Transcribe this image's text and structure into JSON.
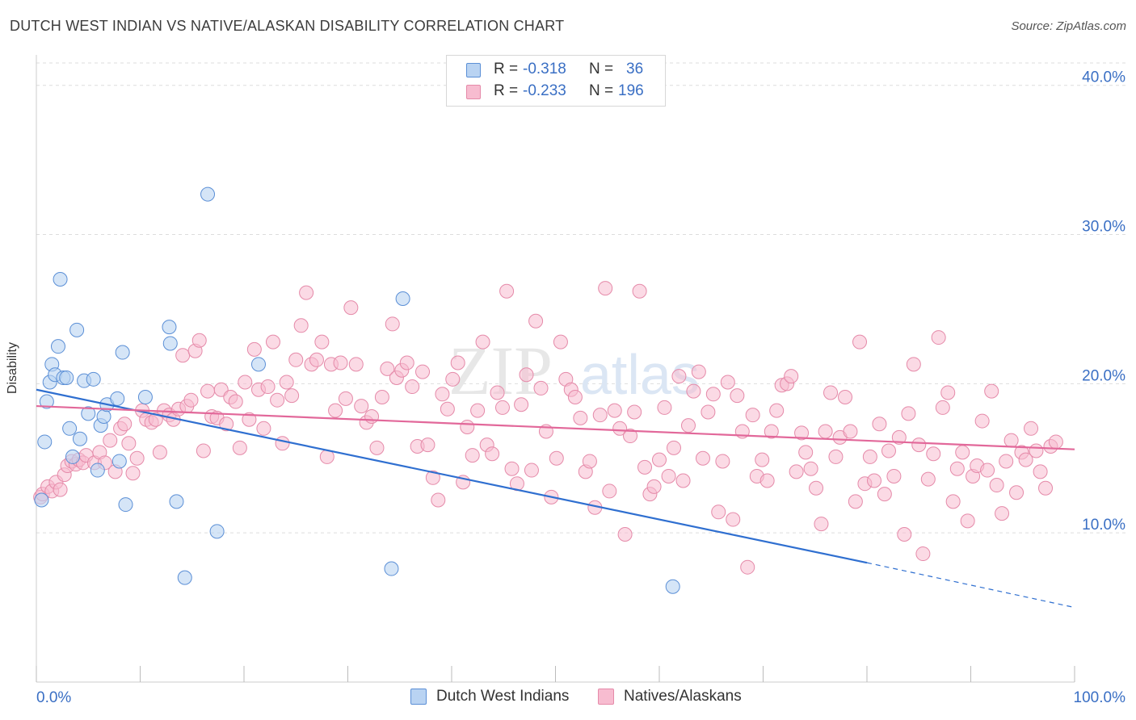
{
  "title": "DUTCH WEST INDIAN VS NATIVE/ALASKAN DISABILITY CORRELATION CHART",
  "source": "Source: ZipAtlas.com",
  "watermark": {
    "zip": "ZIP",
    "atlas": "atlas"
  },
  "stats": {
    "dutch": {
      "r_label": "R =",
      "r_value": "-0.318",
      "n_label": "N =",
      "n_value": "36"
    },
    "native": {
      "r_label": "R =",
      "r_value": "-0.233",
      "n_label": "N =",
      "n_value": "196"
    }
  },
  "legend": {
    "dutch": "Dutch West Indians",
    "native": "Natives/Alaskans"
  },
  "colors": {
    "dutch_fill": "#b9d3f2",
    "dutch_stroke": "#5b8fd6",
    "dutch_line": "#2f6fd0",
    "native_fill": "#f7bcd0",
    "native_stroke": "#e58aa9",
    "native_line": "#e2689a",
    "grid": "#dddddd",
    "axis_label": "#3a6fc4"
  },
  "chart_data": {
    "type": "scatter",
    "title": "DUTCH WEST INDIAN VS NATIVE/ALASKAN DISABILITY CORRELATION CHART",
    "xlabel": "",
    "ylabel": "Disability",
    "xlim": [
      0,
      100
    ],
    "ylim": [
      0,
      41.5
    ],
    "x_tick_labels": [
      "0.0%",
      "100.0%"
    ],
    "y_ticks": [
      10,
      20,
      30,
      40
    ],
    "y_tick_labels": [
      "10.0%",
      "20.0%",
      "30.0%",
      "40.0%"
    ],
    "grid": true,
    "legend_position": "bottom-center",
    "series": [
      {
        "name": "Dutch West Indians",
        "r": -0.318,
        "n": 36,
        "trend": {
          "x0": 0,
          "y0": 19.6,
          "x1": 80,
          "y1": 8.0,
          "dashed_to_x": 100,
          "dashed_to_y": 5.0
        },
        "points": [
          [
            0.5,
            12.2
          ],
          [
            0.8,
            16.1
          ],
          [
            1.0,
            18.8
          ],
          [
            1.3,
            20.1
          ],
          [
            1.5,
            21.3
          ],
          [
            1.8,
            20.6
          ],
          [
            2.1,
            22.5
          ],
          [
            2.3,
            27.0
          ],
          [
            2.6,
            20.4
          ],
          [
            2.9,
            20.4
          ],
          [
            3.2,
            17.0
          ],
          [
            3.5,
            15.1
          ],
          [
            3.9,
            23.6
          ],
          [
            4.2,
            16.3
          ],
          [
            4.6,
            20.2
          ],
          [
            5.0,
            18.0
          ],
          [
            5.5,
            20.3
          ],
          [
            5.9,
            14.2
          ],
          [
            6.2,
            17.2
          ],
          [
            6.5,
            17.8
          ],
          [
            6.8,
            18.6
          ],
          [
            7.8,
            19.0
          ],
          [
            8.0,
            14.8
          ],
          [
            8.3,
            22.1
          ],
          [
            8.6,
            11.9
          ],
          [
            10.5,
            19.1
          ],
          [
            12.8,
            23.8
          ],
          [
            12.9,
            22.7
          ],
          [
            13.5,
            12.1
          ],
          [
            14.3,
            7.0
          ],
          [
            16.5,
            32.7
          ],
          [
            17.4,
            10.1
          ],
          [
            21.4,
            21.3
          ],
          [
            34.2,
            7.6
          ],
          [
            35.3,
            25.7
          ],
          [
            61.3,
            6.4
          ]
        ]
      },
      {
        "name": "Natives/Alaskans",
        "r": -0.233,
        "n": 196,
        "trend": {
          "x0": 0,
          "y0": 18.5,
          "x1": 100,
          "y1": 15.6
        },
        "points": [
          [
            0.4,
            12.4
          ],
          [
            0.6,
            12.6
          ],
          [
            1.1,
            13.1
          ],
          [
            1.5,
            12.8
          ],
          [
            1.9,
            13.4
          ],
          [
            2.3,
            12.9
          ],
          [
            2.7,
            13.9
          ],
          [
            3.0,
            14.5
          ],
          [
            3.4,
            14.8
          ],
          [
            3.8,
            14.6
          ],
          [
            4.1,
            14.9
          ],
          [
            4.5,
            14.7
          ],
          [
            4.8,
            15.2
          ],
          [
            5.6,
            14.7
          ],
          [
            6.1,
            15.4
          ],
          [
            6.6,
            14.7
          ],
          [
            7.1,
            16.2
          ],
          [
            7.6,
            14.1
          ],
          [
            8.1,
            17.0
          ],
          [
            8.5,
            17.3
          ],
          [
            8.9,
            16.0
          ],
          [
            9.3,
            14.0
          ],
          [
            9.7,
            15.0
          ],
          [
            10.2,
            18.2
          ],
          [
            10.6,
            17.6
          ],
          [
            11.1,
            17.4
          ],
          [
            11.5,
            17.6
          ],
          [
            11.9,
            15.4
          ],
          [
            12.3,
            18.2
          ],
          [
            12.8,
            17.9
          ],
          [
            13.2,
            17.6
          ],
          [
            13.7,
            18.3
          ],
          [
            14.1,
            21.9
          ],
          [
            14.5,
            18.5
          ],
          [
            14.9,
            18.9
          ],
          [
            15.3,
            22.2
          ],
          [
            15.7,
            22.9
          ],
          [
            16.1,
            15.5
          ],
          [
            16.5,
            19.5
          ],
          [
            16.9,
            17.8
          ],
          [
            17.4,
            17.7
          ],
          [
            17.8,
            19.6
          ],
          [
            18.3,
            17.3
          ],
          [
            18.7,
            19.1
          ],
          [
            19.2,
            18.8
          ],
          [
            19.6,
            15.7
          ],
          [
            20.1,
            20.1
          ],
          [
            20.5,
            17.6
          ],
          [
            21.0,
            22.3
          ],
          [
            21.4,
            19.6
          ],
          [
            21.9,
            17.0
          ],
          [
            22.3,
            19.8
          ],
          [
            22.8,
            22.8
          ],
          [
            23.2,
            18.9
          ],
          [
            23.7,
            16.0
          ],
          [
            24.1,
            20.1
          ],
          [
            24.6,
            19.2
          ],
          [
            25.0,
            21.6
          ],
          [
            25.5,
            23.9
          ],
          [
            26.0,
            26.1
          ],
          [
            26.5,
            21.3
          ],
          [
            27.0,
            21.6
          ],
          [
            27.5,
            22.8
          ],
          [
            28.0,
            15.1
          ],
          [
            28.4,
            21.3
          ],
          [
            28.8,
            18.2
          ],
          [
            29.3,
            21.4
          ],
          [
            29.8,
            19.0
          ],
          [
            30.3,
            25.1
          ],
          [
            30.8,
            21.3
          ],
          [
            31.3,
            18.5
          ],
          [
            31.8,
            17.4
          ],
          [
            32.3,
            17.8
          ],
          [
            32.8,
            15.7
          ],
          [
            33.3,
            19.1
          ],
          [
            33.8,
            21.0
          ],
          [
            34.3,
            24.0
          ],
          [
            34.7,
            20.4
          ],
          [
            35.2,
            20.9
          ],
          [
            35.7,
            21.4
          ],
          [
            36.2,
            19.8
          ],
          [
            36.7,
            15.8
          ],
          [
            37.2,
            20.8
          ],
          [
            37.7,
            15.9
          ],
          [
            38.2,
            13.7
          ],
          [
            38.7,
            12.2
          ],
          [
            39.1,
            19.3
          ],
          [
            39.6,
            18.3
          ],
          [
            40.1,
            20.3
          ],
          [
            40.6,
            21.4
          ],
          [
            41.1,
            13.4
          ],
          [
            41.5,
            17.1
          ],
          [
            42.0,
            15.2
          ],
          [
            42.5,
            18.2
          ],
          [
            43.0,
            22.8
          ],
          [
            43.4,
            15.9
          ],
          [
            43.9,
            15.3
          ],
          [
            44.4,
            19.4
          ],
          [
            44.9,
            18.4
          ],
          [
            45.3,
            26.2
          ],
          [
            45.8,
            14.3
          ],
          [
            46.3,
            13.3
          ],
          [
            46.7,
            18.6
          ],
          [
            47.2,
            20.6
          ],
          [
            47.7,
            14.2
          ],
          [
            48.1,
            24.2
          ],
          [
            48.6,
            19.7
          ],
          [
            49.1,
            16.8
          ],
          [
            49.6,
            12.4
          ],
          [
            50.1,
            15.0
          ],
          [
            50.5,
            22.8
          ],
          [
            51.0,
            20.3
          ],
          [
            51.5,
            19.6
          ],
          [
            51.9,
            19.1
          ],
          [
            52.4,
            17.7
          ],
          [
            52.9,
            14.1
          ],
          [
            53.3,
            14.8
          ],
          [
            53.8,
            11.7
          ],
          [
            54.3,
            17.9
          ],
          [
            54.8,
            26.4
          ],
          [
            55.2,
            12.8
          ],
          [
            55.7,
            18.2
          ],
          [
            56.2,
            17.0
          ],
          [
            56.7,
            9.9
          ],
          [
            57.2,
            16.5
          ],
          [
            57.6,
            18.1
          ],
          [
            58.1,
            26.2
          ],
          [
            58.6,
            14.4
          ],
          [
            59.1,
            12.6
          ],
          [
            59.5,
            13.1
          ],
          [
            60.0,
            14.9
          ],
          [
            60.5,
            18.4
          ],
          [
            60.9,
            13.8
          ],
          [
            61.4,
            15.7
          ],
          [
            61.9,
            20.5
          ],
          [
            62.3,
            13.5
          ],
          [
            62.8,
            17.2
          ],
          [
            63.3,
            19.5
          ],
          [
            63.8,
            20.8
          ],
          [
            64.2,
            15.0
          ],
          [
            64.7,
            18.1
          ],
          [
            65.2,
            19.3
          ],
          [
            65.7,
            11.4
          ],
          [
            66.1,
            14.8
          ],
          [
            66.6,
            20.1
          ],
          [
            67.1,
            10.9
          ],
          [
            67.5,
            19.2
          ],
          [
            68.0,
            16.8
          ],
          [
            68.5,
            7.7
          ],
          [
            69.0,
            17.9
          ],
          [
            69.4,
            13.8
          ],
          [
            69.9,
            14.9
          ],
          [
            70.4,
            13.5
          ],
          [
            70.8,
            16.8
          ],
          [
            71.3,
            18.2
          ],
          [
            71.8,
            19.9
          ],
          [
            72.3,
            20.0
          ],
          [
            72.7,
            20.5
          ],
          [
            73.2,
            14.1
          ],
          [
            73.7,
            16.7
          ],
          [
            74.1,
            15.4
          ],
          [
            74.6,
            14.3
          ],
          [
            75.1,
            13.0
          ],
          [
            75.6,
            10.6
          ],
          [
            76.0,
            16.8
          ],
          [
            76.5,
            19.4
          ],
          [
            77.0,
            15.1
          ],
          [
            77.4,
            16.4
          ],
          [
            77.9,
            19.1
          ],
          [
            78.4,
            16.8
          ],
          [
            78.9,
            12.1
          ],
          [
            79.3,
            22.8
          ],
          [
            79.8,
            13.3
          ],
          [
            80.3,
            15.1
          ],
          [
            80.7,
            13.5
          ],
          [
            81.2,
            17.3
          ],
          [
            81.7,
            12.6
          ],
          [
            82.1,
            15.5
          ],
          [
            82.6,
            13.8
          ],
          [
            83.1,
            16.4
          ],
          [
            83.6,
            9.9
          ],
          [
            84.0,
            18.0
          ],
          [
            84.5,
            21.3
          ],
          [
            85.0,
            15.9
          ],
          [
            85.4,
            8.6
          ],
          [
            85.9,
            13.6
          ],
          [
            86.4,
            15.3
          ],
          [
            86.9,
            23.1
          ],
          [
            87.3,
            18.4
          ],
          [
            87.8,
            19.4
          ],
          [
            88.3,
            12.1
          ],
          [
            88.7,
            14.3
          ],
          [
            89.2,
            15.4
          ],
          [
            89.7,
            10.8
          ],
          [
            90.2,
            13.8
          ],
          [
            90.6,
            14.5
          ],
          [
            91.1,
            17.5
          ],
          [
            91.6,
            14.2
          ],
          [
            92.0,
            19.5
          ],
          [
            92.5,
            13.2
          ],
          [
            93.0,
            11.3
          ],
          [
            93.4,
            14.8
          ],
          [
            93.9,
            16.2
          ],
          [
            94.4,
            12.7
          ],
          [
            94.9,
            15.4
          ],
          [
            95.3,
            14.9
          ],
          [
            95.8,
            17.0
          ],
          [
            96.3,
            15.5
          ],
          [
            96.7,
            14.1
          ],
          [
            97.2,
            13.0
          ],
          [
            97.7,
            15.8
          ],
          [
            98.2,
            16.1
          ]
        ]
      }
    ]
  }
}
